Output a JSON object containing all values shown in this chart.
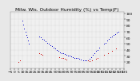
{
  "title": "Milw. Wis. Outdoor Humidity (%) vs Temp(F)",
  "bg_color": "#e8e8e8",
  "plot_bg_color": "#f0f0f0",
  "grid_color": "#aaaaaa",
  "title_color": "#000000",
  "tick_color": "#000000",
  "blue_color": "#0000cc",
  "red_color": "#cc0000",
  "xlim": [
    -5,
    135
  ],
  "ylim": [
    10,
    102
  ],
  "yticks": [
    20,
    30,
    40,
    50,
    60,
    70,
    80,
    90,
    100
  ],
  "xtick_spacing": 5,
  "marker_size": 2.0,
  "title_fontsize": 4.2,
  "tick_fontsize": 3.2,
  "blue_x": [
    10,
    11,
    12,
    13,
    14,
    15,
    16,
    17,
    30,
    32,
    34,
    36,
    38,
    40,
    42,
    44,
    46,
    48,
    50,
    52,
    54,
    56,
    58,
    60,
    62,
    64,
    66,
    68,
    70,
    72,
    74,
    76,
    78,
    80,
    82,
    84,
    86,
    88,
    90,
    92,
    94,
    96,
    98,
    100,
    102,
    104,
    110,
    112,
    114,
    116,
    118,
    120,
    122,
    124,
    126,
    128
  ],
  "blue_y": [
    88,
    82,
    75,
    70,
    65,
    60,
    55,
    50,
    62,
    60,
    58,
    56,
    54,
    52,
    50,
    48,
    46,
    44,
    42,
    40,
    38,
    36,
    35,
    34,
    33,
    32,
    31,
    30,
    29,
    28,
    27,
    26,
    26,
    25,
    24,
    23,
    22,
    22,
    23,
    25,
    28,
    32,
    35,
    38,
    40,
    44,
    50,
    52,
    55,
    58,
    60,
    62,
    64,
    66,
    68,
    70
  ],
  "red_x": [
    5,
    7,
    30,
    32,
    34,
    55,
    58,
    60,
    62,
    64,
    90,
    92,
    95,
    100,
    102,
    110,
    115,
    120,
    125
  ],
  "red_y": [
    20,
    22,
    35,
    33,
    32,
    28,
    27,
    26,
    25,
    24,
    22,
    21,
    22,
    25,
    27,
    32,
    35,
    38,
    42
  ]
}
